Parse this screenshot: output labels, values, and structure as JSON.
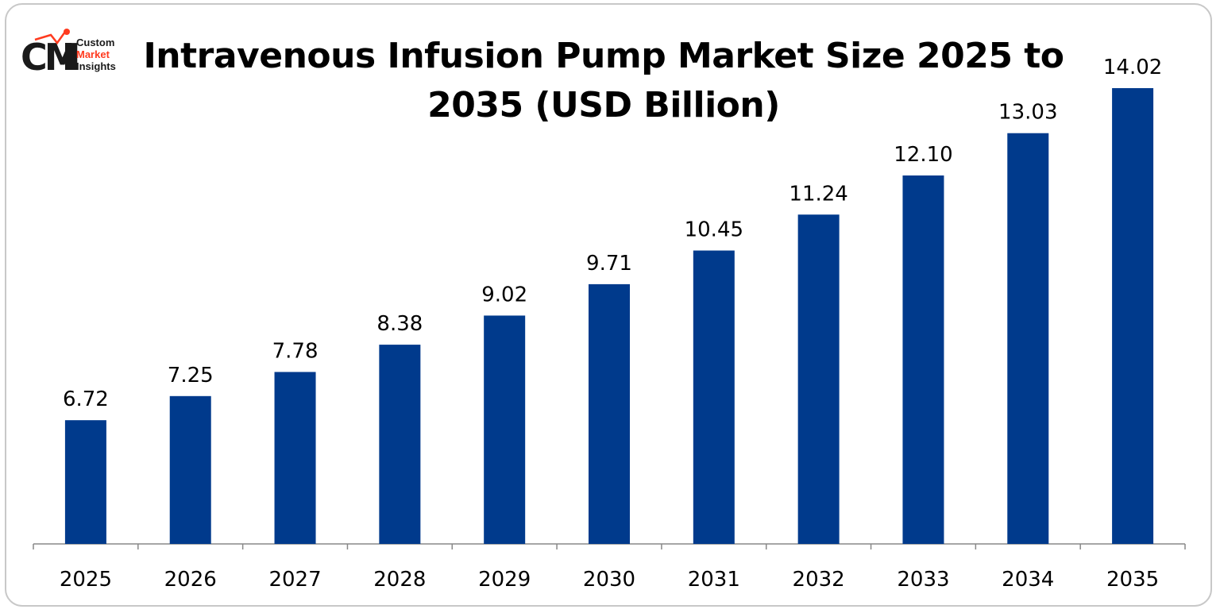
{
  "brand": {
    "logo_text": "CMI Custom Market Insights",
    "logo_words": [
      "Custom",
      "Market",
      "Insights"
    ],
    "accent": "#ff3b1f",
    "dark": "#1a1a1a"
  },
  "chart_data": {
    "type": "bar",
    "title": "Intravenous Infusion Pump Market Size 2025 to 2035 (USD Billion)",
    "categories": [
      "2025",
      "2026",
      "2027",
      "2028",
      "2029",
      "2030",
      "2031",
      "2032",
      "2033",
      "2034",
      "2035"
    ],
    "values": [
      6.72,
      7.25,
      7.78,
      8.38,
      9.02,
      9.71,
      10.45,
      11.24,
      12.1,
      13.03,
      14.02
    ],
    "data_labels": [
      "6.72",
      "7.25",
      "7.78",
      "8.38",
      "9.02",
      "9.71",
      "10.45",
      "11.24",
      "12.10",
      "13.03",
      "14.02"
    ],
    "xlabel": "",
    "ylabel": "",
    "ylim": [
      4,
      14.5
    ],
    "grid": false,
    "bar_color": "#003a8c"
  }
}
